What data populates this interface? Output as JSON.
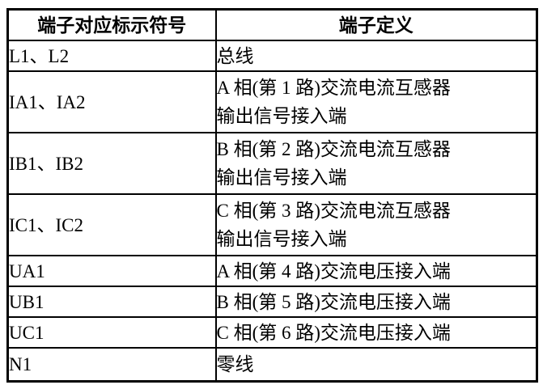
{
  "page": {
    "background_color": "#ffffff",
    "text_color": "#000000",
    "border_color": "#000000"
  },
  "table": {
    "headers": [
      {
        "label": "端子对应标示符号"
      },
      {
        "label": "端子定义"
      }
    ],
    "rows": [
      {
        "symbol": "L1、L2",
        "definition": "总线"
      },
      {
        "symbol": "IA1、IA2",
        "definition": "A 相(第 1 路)交流电流互感器\n输出信号接入端"
      },
      {
        "symbol": "IB1、IB2",
        "definition": "B 相(第 2 路)交流电流互感器\n输出信号接入端"
      },
      {
        "symbol": "IC1、IC2",
        "definition": "C 相(第 3 路)交流电流互感器\n输出信号接入端"
      },
      {
        "symbol": "UA1",
        "definition": "A 相(第 4 路)交流电压接入端"
      },
      {
        "symbol": "UB1",
        "definition": "B 相(第 5 路)交流电压接入端"
      },
      {
        "symbol": "UC1",
        "definition": "C 相(第 6 路)交流电压接入端"
      },
      {
        "symbol": "N1",
        "definition": "零线"
      }
    ]
  }
}
